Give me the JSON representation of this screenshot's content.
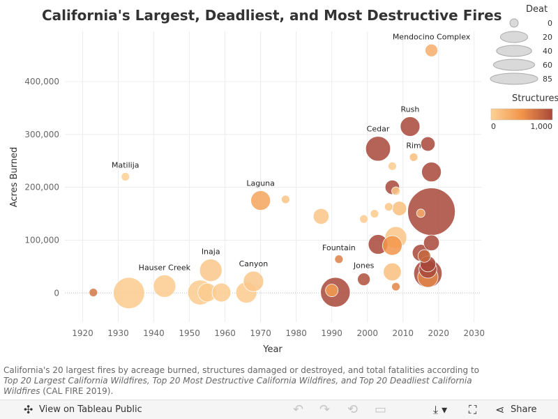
{
  "title": "California's Largest, Deadliest, and Most Destructive Fires",
  "caption": {
    "lead": "California's 20 largest fires by acreage burned, structures damaged or destroyed, and total fatalities according to ",
    "sources": "Top 20 Largest California Wildfires, Top 20 Most Destructive California Wildfires, and Top 20 Deadliest California Wildfires",
    "tail": " (CAL FIRE 2019)."
  },
  "colors": {
    "low": "#fcd196",
    "mid": "#f2954a",
    "high": "#a8483a",
    "grid": "#ececec"
  },
  "legend": {
    "size_title": "Deat",
    "size_labels": [
      "0",
      "20",
      "40",
      "60",
      "85"
    ],
    "size_values": [
      0,
      20,
      40,
      60,
      85
    ],
    "color_title": "Structures",
    "color_min_label": "0",
    "color_max_label": "1,000"
  },
  "toolbar": {
    "view_label": "View on Tableau Public",
    "share_label": "Share",
    "icons": [
      "tableau-icon",
      "undo-icon",
      "redo-icon",
      "revert-icon",
      "pause-icon",
      "download-icon",
      "fullscreen-icon",
      "share-icon"
    ]
  },
  "chart_data": {
    "type": "scatter",
    "xlabel": "Year",
    "ylabel": "Acres Burned",
    "xlim": [
      1915,
      2032
    ],
    "ylim": [
      -55000,
      495000
    ],
    "xticks": [
      1920,
      1930,
      1940,
      1950,
      1960,
      1970,
      1980,
      1990,
      2000,
      2010,
      2020,
      2030
    ],
    "yticks": [
      0,
      100000,
      200000,
      300000,
      400000
    ],
    "ytick_labels": [
      "0",
      "100,000",
      "200,000",
      "300,000",
      "400,000"
    ],
    "size_field": "Deaths",
    "color_field": "Structures",
    "points": [
      {
        "label": "",
        "x": 1923,
        "y": 1000,
        "deaths": 0,
        "structures": 700
      },
      {
        "label": "",
        "x": 1933,
        "y": 0,
        "deaths": 29,
        "structures": 50
      },
      {
        "label": "Matilija",
        "x": 1932,
        "y": 220000,
        "deaths": 0,
        "structures": 20
      },
      {
        "label": "Hauser Creek",
        "x": 1943,
        "y": 13000,
        "deaths": 11,
        "structures": 50
      },
      {
        "label": "",
        "x": 1953,
        "y": 1000,
        "deaths": 15,
        "structures": 50
      },
      {
        "label": "",
        "x": 1955,
        "y": 1000,
        "deaths": 6,
        "structures": 50
      },
      {
        "label": "Inaja",
        "x": 1956,
        "y": 43000,
        "deaths": 11,
        "structures": 80
      },
      {
        "label": "",
        "x": 1959,
        "y": 1000,
        "deaths": 6,
        "structures": 50
      },
      {
        "label": "",
        "x": 1966,
        "y": 1000,
        "deaths": 9,
        "structures": 50
      },
      {
        "label": "Canyon",
        "x": 1968,
        "y": 22000,
        "deaths": 8,
        "structures": 80
      },
      {
        "label": "Laguna",
        "x": 1970,
        "y": 175000,
        "deaths": 7,
        "structures": 382
      },
      {
        "label": "",
        "x": 1977,
        "y": 177000,
        "deaths": 0,
        "structures": 100
      },
      {
        "label": "",
        "x": 1987,
        "y": 145000,
        "deaths": 3,
        "structures": 100
      },
      {
        "label": "Fountain",
        "x": 1992,
        "y": 64000,
        "deaths": 0,
        "structures": 636
      },
      {
        "label": "",
        "x": 1991,
        "y": 1500,
        "deaths": 25,
        "structures": 1000
      },
      {
        "label": "",
        "x": 1990,
        "y": 5000,
        "deaths": 1,
        "structures": 450
      },
      {
        "label": "Jones",
        "x": 1999,
        "y": 26000,
        "deaths": 1,
        "structures": 954
      },
      {
        "label": "",
        "x": 1999,
        "y": 140000,
        "deaths": 0,
        "structures": 50
      },
      {
        "label": "",
        "x": 2002,
        "y": 150000,
        "deaths": 0,
        "structures": 50
      },
      {
        "label": "Cedar",
        "x": 2003,
        "y": 273000,
        "deaths": 15,
        "structures": 1000
      },
      {
        "label": "",
        "x": 2003,
        "y": 92000,
        "deaths": 7,
        "structures": 1000
      },
      {
        "label": "",
        "x": 2006,
        "y": 163000,
        "deaths": 0,
        "structures": 100
      },
      {
        "label": "",
        "x": 2007,
        "y": 240000,
        "deaths": 0,
        "structures": 50
      },
      {
        "label": "",
        "x": 2007,
        "y": 40000,
        "deaths": 5,
        "structures": 150
      },
      {
        "label": "",
        "x": 2007,
        "y": 200000,
        "deaths": 2,
        "structures": 1000
      },
      {
        "label": "",
        "x": 2007,
        "y": 90000,
        "deaths": 7,
        "structures": 500
      },
      {
        "label": "",
        "x": 2008,
        "y": 105000,
        "deaths": 10,
        "structures": 100
      },
      {
        "label": "",
        "x": 2008,
        "y": 12000,
        "deaths": 0,
        "structures": 600
      },
      {
        "label": "",
        "x": 2008,
        "y": 193000,
        "deaths": 0,
        "structures": 100
      },
      {
        "label": "",
        "x": 2009,
        "y": 160000,
        "deaths": 2,
        "structures": 150
      },
      {
        "label": "Rush",
        "x": 2012,
        "y": 315000,
        "deaths": 7,
        "structures": 1000
      },
      {
        "label": "Rim",
        "x": 2013,
        "y": 257000,
        "deaths": 0,
        "structures": 150
      },
      {
        "label": "",
        "x": 2015,
        "y": 76000,
        "deaths": 4,
        "structures": 1000
      },
      {
        "label": "",
        "x": 2015,
        "y": 151000,
        "deaths": 0,
        "structures": 300
      },
      {
        "label": "",
        "x": 2016,
        "y": 70000,
        "deaths": 1,
        "structures": 800
      },
      {
        "label": "",
        "x": 2017,
        "y": 282000,
        "deaths": 2,
        "structures": 1000
      },
      {
        "label": "",
        "x": 2017,
        "y": 55000,
        "deaths": 3,
        "structures": 1000
      },
      {
        "label": "",
        "x": 2017,
        "y": 45000,
        "deaths": 5,
        "structures": 1000
      },
      {
        "label": "",
        "x": 2017,
        "y": 37000,
        "deaths": 22,
        "structures": 1000
      },
      {
        "label": "",
        "x": 2017,
        "y": 30000,
        "deaths": 8,
        "structures": 600
      },
      {
        "label": "",
        "x": 2018,
        "y": 95000,
        "deaths": 3,
        "structures": 1000
      },
      {
        "label": "",
        "x": 2018,
        "y": 229000,
        "deaths": 7,
        "structures": 1000
      },
      {
        "label": "",
        "x": 2018,
        "y": 154000,
        "deaths": 85,
        "structures": 1000
      },
      {
        "label": "Mendocino Complex",
        "x": 2018,
        "y": 459000,
        "deaths": 1,
        "structures": 300
      }
    ]
  }
}
